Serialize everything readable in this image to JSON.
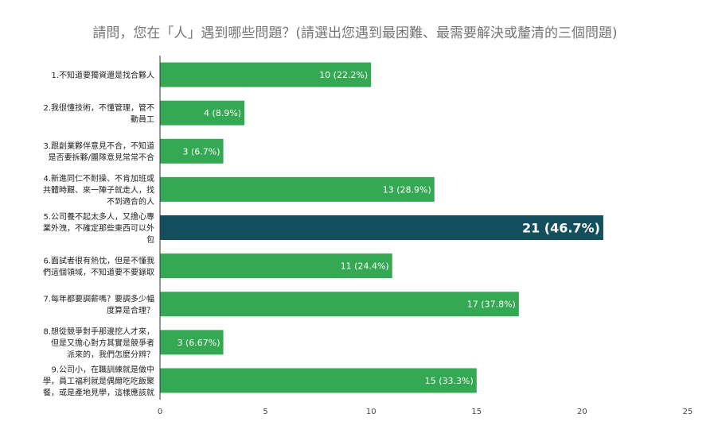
{
  "chart_data": {
    "type": "bar",
    "orientation": "horizontal",
    "title": "請問，您在「人」遇到哪些問題？(請選出您遇到最困難、最需要解決或釐清的三個問題)",
    "xlabel": "",
    "ylabel": "",
    "xlim": [
      0,
      25
    ],
    "xticks": [
      "0",
      "5",
      "10",
      "15",
      "20",
      "25"
    ],
    "grid": false,
    "legend": "none",
    "colors": {
      "bar": "#34a853",
      "highlight": "#134f5c",
      "title": "#757575",
      "axis": "#333333"
    },
    "categories": [
      [
        "1.不知道要獨資還是找合夥人"
      ],
      [
        "2.我很懂技術，不懂管理，管不",
        "動員工"
      ],
      [
        "3.跟創業夥伴意見不合，不知道",
        "是否要拆夥/團隊意見常常不合"
      ],
      [
        "4.新進同仁不耐操、不肯加班或",
        "共體時艱、來一陣子就走人，找",
        "不到適合的人"
      ],
      [
        "5.公司養不起太多人，又擔心專",
        "業外洩，不確定那些東西可以外",
        "包"
      ],
      [
        "6.面試者很有熱忱，但是不懂我",
        "們這個領域，不知道要不要錄取"
      ],
      [
        "7.每年都要調薪嗎？要調多少幅",
        "度算是合理？"
      ],
      [
        "8.想從競爭對手那邊挖人才來，",
        "但是又擔心對方其實是競爭者",
        "派來的，我們怎麼分辨？"
      ],
      [
        "9.公司小，在職訓練就是做中",
        "學，員工福利就是偶爾吃吃飯聚",
        "餐，或是產地見學，這樣應該就"
      ]
    ],
    "values": [
      10,
      4,
      3,
      13,
      21,
      11,
      17,
      3,
      15
    ],
    "data_labels": [
      "10 (22.2%)",
      "4 (8.9%)",
      "3 (6.7%)",
      "13 (28.9%)",
      "21 (46.7%)",
      "11 (24.4%)",
      "17 (37.8%)",
      "3 (6.67%)",
      "15 (33.3%)"
    ],
    "highlight_index": 4
  }
}
